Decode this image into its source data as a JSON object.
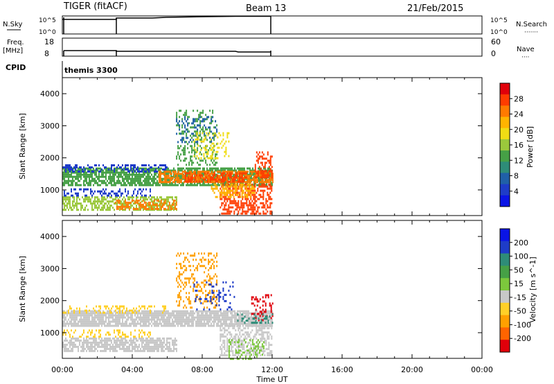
{
  "header": {
    "title": "TIGER (fitACF)",
    "beam": "Beam 13",
    "date": "21/Feb/2015"
  },
  "nsky_panel": {
    "left_label": "N.Sky",
    "left_ticks": [
      "10^5",
      "10^0"
    ],
    "right_label": "N.Search",
    "right_ticks": [
      "10^5",
      "10^0"
    ],
    "legend_dots": "·······"
  },
  "freq_panel": {
    "left_label_1": "Freq.",
    "left_label_2": "[MHz]",
    "left_ticks": [
      "18",
      "8"
    ],
    "right_label": "Nave",
    "right_ticks": [
      "60",
      "0"
    ],
    "legend_dots": "····"
  },
  "cpid": {
    "label": "CPID",
    "value": "themis 3300"
  },
  "chart_data": [
    {
      "type": "heatmap",
      "name": "power-panel",
      "xlabel": "",
      "ylabel": "Slant Range [km]",
      "xlim": [
        0,
        24
      ],
      "ylim": [
        200,
        4500
      ],
      "yticks": [
        "1000",
        "2000",
        "3000",
        "4000"
      ],
      "colorbar_label": "Power [dB]",
      "colorbar_ticks": [
        "28",
        "24",
        "20",
        "16",
        "12",
        "8",
        "4"
      ],
      "colorbar_colors": [
        "#e0000a",
        "#ff3c00",
        "#ff7a00",
        "#ffb400",
        "#f0dc14",
        "#9bc83c",
        "#46a046",
        "#2e8c78",
        "#2060a8",
        "#1e3cc8",
        "#0a14e6"
      ],
      "bands": [
        {
          "t0": 0.0,
          "t1": 12.0,
          "r0": 1180,
          "r1": 1700,
          "color": "#46a046",
          "fill": 0.75
        },
        {
          "t0": 0.0,
          "t1": 6.0,
          "r0": 1600,
          "r1": 1800,
          "color": "#1e3cc8",
          "fill": 0.45
        },
        {
          "t0": 5.5,
          "t1": 12.0,
          "r0": 1250,
          "r1": 1600,
          "color": "#ff7a00",
          "fill": 0.7
        },
        {
          "t0": 7.0,
          "t1": 10.5,
          "r0": 1250,
          "r1": 1550,
          "color": "#ff3c00",
          "fill": 0.6
        },
        {
          "t0": 0.0,
          "t1": 6.5,
          "r0": 400,
          "r1": 800,
          "color": "#9bc83c",
          "fill": 0.6
        },
        {
          "t0": 3.0,
          "t1": 6.5,
          "r0": 400,
          "r1": 700,
          "color": "#ff7a00",
          "fill": 0.5
        },
        {
          "t0": 0.0,
          "t1": 5.0,
          "r0": 850,
          "r1": 1050,
          "color": "#1e3cc8",
          "fill": 0.35
        },
        {
          "t0": 9.0,
          "t1": 12.0,
          "r0": 250,
          "r1": 1200,
          "color": "#ff3c00",
          "fill": 0.55
        },
        {
          "t0": 8.5,
          "t1": 11.0,
          "r0": 800,
          "r1": 1200,
          "color": "#ffb400",
          "fill": 0.45
        },
        {
          "t0": 6.5,
          "t1": 8.8,
          "r0": 1800,
          "r1": 3500,
          "color": "#46a046",
          "fill": 0.3
        },
        {
          "t0": 6.5,
          "t1": 8.8,
          "r0": 2500,
          "r1": 3300,
          "color": "#2060a8",
          "fill": 0.2
        },
        {
          "t0": 7.5,
          "t1": 9.5,
          "r0": 2000,
          "r1": 2800,
          "color": "#f0dc14",
          "fill": 0.25
        },
        {
          "t0": 11.0,
          "t1": 12.0,
          "r0": 1400,
          "r1": 2200,
          "color": "#ff3c00",
          "fill": 0.5
        }
      ]
    },
    {
      "type": "heatmap",
      "name": "velocity-panel",
      "xlabel": "Time UT",
      "ylabel": "Slant Range [km]",
      "xlim": [
        0,
        24
      ],
      "ylim": [
        200,
        4500
      ],
      "xticks": [
        "00:00",
        "04:00",
        "08:00",
        "12:00",
        "16:00",
        "20:00",
        "00:00"
      ],
      "yticks": [
        "1000",
        "2000",
        "3000",
        "4000"
      ],
      "colorbar_label": "Velocity [m s^-1]",
      "colorbar_ticks": [
        "200",
        "100",
        "50",
        "15",
        "-15",
        "-50",
        "-100",
        "-200"
      ],
      "colorbar_colors": [
        "#0a14e6",
        "#1e3cc8",
        "#2e8c78",
        "#46a046",
        "#7cc83c",
        "#c8c8c8",
        "#ffd028",
        "#ffa000",
        "#ff6400",
        "#e0000a"
      ],
      "bands": [
        {
          "t0": 0.0,
          "t1": 12.0,
          "r0": 1200,
          "r1": 1700,
          "color": "#c8c8c8",
          "fill": 0.85
        },
        {
          "t0": 0.0,
          "t1": 6.0,
          "r0": 1600,
          "r1": 1850,
          "color": "#ffd028",
          "fill": 0.35
        },
        {
          "t0": 0.0,
          "t1": 6.5,
          "r0": 400,
          "r1": 850,
          "color": "#c8c8c8",
          "fill": 0.75
        },
        {
          "t0": 0.0,
          "t1": 5.0,
          "r0": 850,
          "r1": 1100,
          "color": "#ffd028",
          "fill": 0.3
        },
        {
          "t0": 6.5,
          "t1": 8.8,
          "r0": 1800,
          "r1": 3500,
          "color": "#ffa000",
          "fill": 0.3
        },
        {
          "t0": 7.5,
          "t1": 9.8,
          "r0": 1700,
          "r1": 2600,
          "color": "#1e3cc8",
          "fill": 0.15
        },
        {
          "t0": 9.0,
          "t1": 12.0,
          "r0": 300,
          "r1": 1300,
          "color": "#c8c8c8",
          "fill": 0.5
        },
        {
          "t0": 9.5,
          "t1": 11.5,
          "r0": 200,
          "r1": 800,
          "color": "#7cc83c",
          "fill": 0.3
        },
        {
          "t0": 10.8,
          "t1": 12.0,
          "r0": 1400,
          "r1": 2200,
          "color": "#e0000a",
          "fill": 0.25
        },
        {
          "t0": 10.0,
          "t1": 12.0,
          "r0": 1300,
          "r1": 1600,
          "color": "#2e8c78",
          "fill": 0.35
        }
      ]
    }
  ]
}
